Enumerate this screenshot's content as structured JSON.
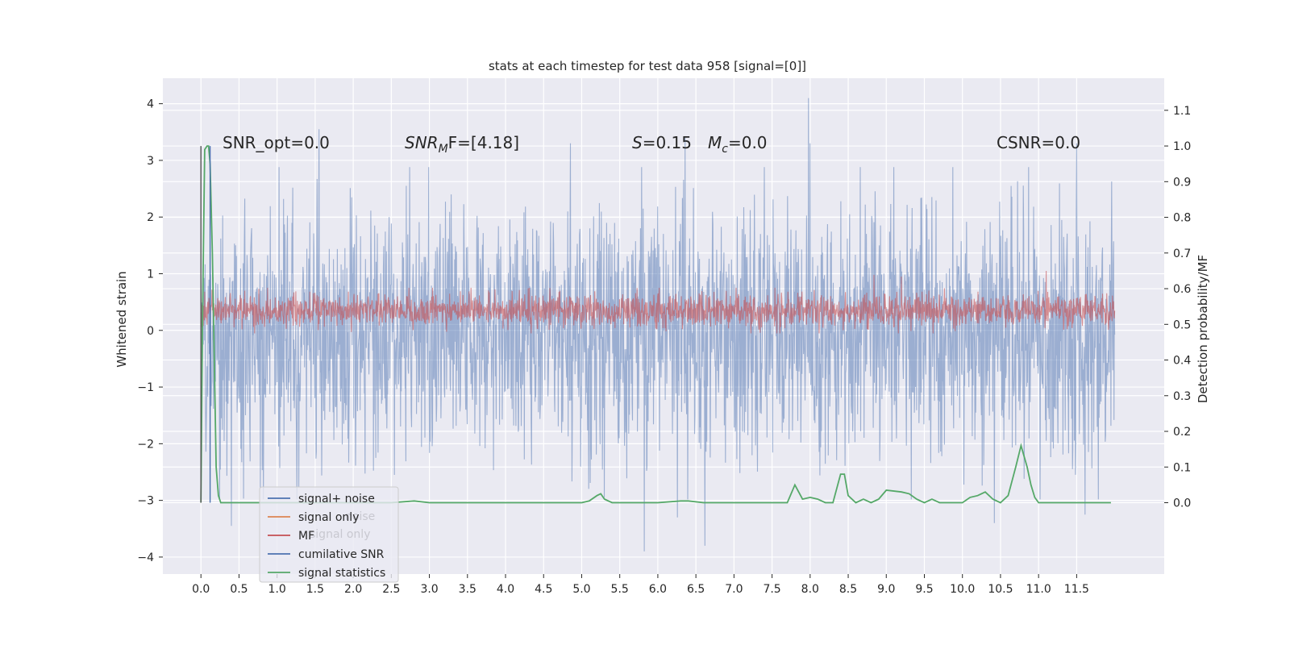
{
  "chart_data": {
    "type": "line",
    "title": "stats at each timestep for test data 958 [signal=[0]]",
    "xlabel": "",
    "ylabel": "Whitened strain",
    "ylabel_right": "Detection probability/MF",
    "xlim": [
      -0.5,
      12.65
    ],
    "ylim": [
      -4.3,
      4.45
    ],
    "ylim_right": [
      -0.2,
      1.19
    ],
    "x_ticks": [
      "0.0",
      "0.5",
      "1.0",
      "1.5",
      "2.0",
      "2.5",
      "3.0",
      "3.5",
      "4.0",
      "4.5",
      "5.0",
      "5.5",
      "6.0",
      "6.5",
      "7.0",
      "7.5",
      "8.0",
      "8.5",
      "9.0",
      "9.5",
      "10.0",
      "10.5",
      "11.0",
      "11.5"
    ],
    "y_ticks": [
      "−4",
      "−3",
      "−2",
      "−1",
      "0",
      "1",
      "2",
      "3",
      "4"
    ],
    "y_ticks_right": [
      "0.0",
      "0.1",
      "0.2",
      "0.3",
      "0.4",
      "0.5",
      "0.6",
      "0.7",
      "0.8",
      "0.9",
      "1.0",
      "1.1"
    ],
    "grid": true,
    "legend_placement": "lower-left",
    "legend": [
      {
        "label": "signal+ noise",
        "color": "#4c72b0"
      },
      {
        "label": "signal only",
        "color": "#dd8452"
      },
      {
        "label": "MF",
        "color": "#c44e52"
      },
      {
        "label": "cumilative SNR",
        "color": "#4c72b0"
      },
      {
        "label": "signal statistics",
        "color": "#55a868"
      }
    ],
    "legend_ghost": [
      "noise",
      "signal only"
    ],
    "annotations": {
      "snr_opt": "SNR_opt=0.0",
      "snr_mf_main": "SNR",
      "snr_mf_sub": "M",
      "snr_mf_rest": "F=[4.18]",
      "s_var": "S",
      "s_val": "=0.15",
      "mc_var": "M",
      "mc_sub": "c",
      "mc_val": "=0.0",
      "csnr": "CSNR=0.0"
    },
    "series": [
      {
        "name": "signal+ noise",
        "color": "#4c72b0",
        "opacity": 0.5,
        "x_range": [
          0.0,
          12.0
        ],
        "samples": 2400,
        "envelope": {
          "mean": 0.0,
          "typical_min": -2.6,
          "typical_max": 2.5
        },
        "peaks": [
          {
            "x": 7.98,
            "y": 4.1
          },
          {
            "x": 8.0,
            "y": 3.3
          },
          {
            "x": 6.36,
            "y": 3.4
          },
          {
            "x": 1.55,
            "y": 3.55
          },
          {
            "x": 11.5,
            "y": 3.3
          },
          {
            "x": 4.85,
            "y": 3.3
          },
          {
            "x": 5.82,
            "y": -3.9
          },
          {
            "x": 6.62,
            "y": -3.8
          },
          {
            "x": 0.4,
            "y": -3.45
          },
          {
            "x": 10.42,
            "y": -3.4
          },
          {
            "x": 6.26,
            "y": -3.3
          },
          {
            "x": 11.61,
            "y": -3.25
          }
        ]
      },
      {
        "name": "MF",
        "color": "#c44e52",
        "opacity": 0.6,
        "x_range": [
          0.0,
          12.0
        ],
        "samples": 2400,
        "envelope": {
          "mean": 0.3,
          "typical_min": 0.0,
          "typical_max": 0.7
        },
        "peaks": [
          {
            "x": 9.2,
            "y": 0.95
          },
          {
            "x": 11.1,
            "y": 1.05
          },
          {
            "x": 8.84,
            "y": 0.98
          }
        ]
      },
      {
        "name": "signal statistics",
        "color": "#55a868",
        "axis": "right",
        "x": [
          0.0,
          0.02,
          0.05,
          0.08,
          0.1,
          0.12,
          0.15,
          0.18,
          0.2,
          0.23,
          0.26,
          0.3,
          0.4,
          0.6,
          1.0,
          2.0,
          2.5,
          2.8,
          3.0,
          4.0,
          5.0,
          5.1,
          5.2,
          5.25,
          5.3,
          5.4,
          6.0,
          6.3,
          6.4,
          6.6,
          7.0,
          7.5,
          7.7,
          7.8,
          7.9,
          8.0,
          8.1,
          8.2,
          8.3,
          8.4,
          8.45,
          8.5,
          8.6,
          8.7,
          8.8,
          8.9,
          9.0,
          9.2,
          9.3,
          9.4,
          9.5,
          9.6,
          9.7,
          9.8,
          10.0,
          10.1,
          10.2,
          10.25,
          10.3,
          10.4,
          10.5,
          10.6,
          10.7,
          10.77,
          10.85,
          10.9,
          10.95,
          11.0,
          11.1,
          11.5,
          11.95
        ],
        "y": [
          0.0,
          0.5,
          0.99,
          1.0,
          1.0,
          0.95,
          0.7,
          0.35,
          0.1,
          0.02,
          0.0,
          0.0,
          0.0,
          0.0,
          0.0,
          0.0,
          0.0,
          0.005,
          0.0,
          0.0,
          0.0,
          0.005,
          0.02,
          0.025,
          0.01,
          0.0,
          0.0,
          0.005,
          0.005,
          0.0,
          0.0,
          0.0,
          0.0,
          0.05,
          0.01,
          0.015,
          0.01,
          0.0,
          0.0,
          0.08,
          0.08,
          0.02,
          0.0,
          0.01,
          0.0,
          0.01,
          0.035,
          0.03,
          0.025,
          0.01,
          0.0,
          0.01,
          0.0,
          0.0,
          0.0,
          0.015,
          0.02,
          0.025,
          0.03,
          0.01,
          0.0,
          0.02,
          0.1,
          0.16,
          0.1,
          0.05,
          0.015,
          0.0,
          0.0,
          0.0,
          0.0
        ]
      },
      {
        "name": "cumilative SNR",
        "color": "#4c72b0",
        "axis": "right",
        "x": [
          0.12,
          0.12
        ],
        "y": [
          1.0,
          0.0
        ]
      },
      {
        "name": "signal only",
        "color": "#dd8452",
        "x": [],
        "y": []
      }
    ]
  }
}
